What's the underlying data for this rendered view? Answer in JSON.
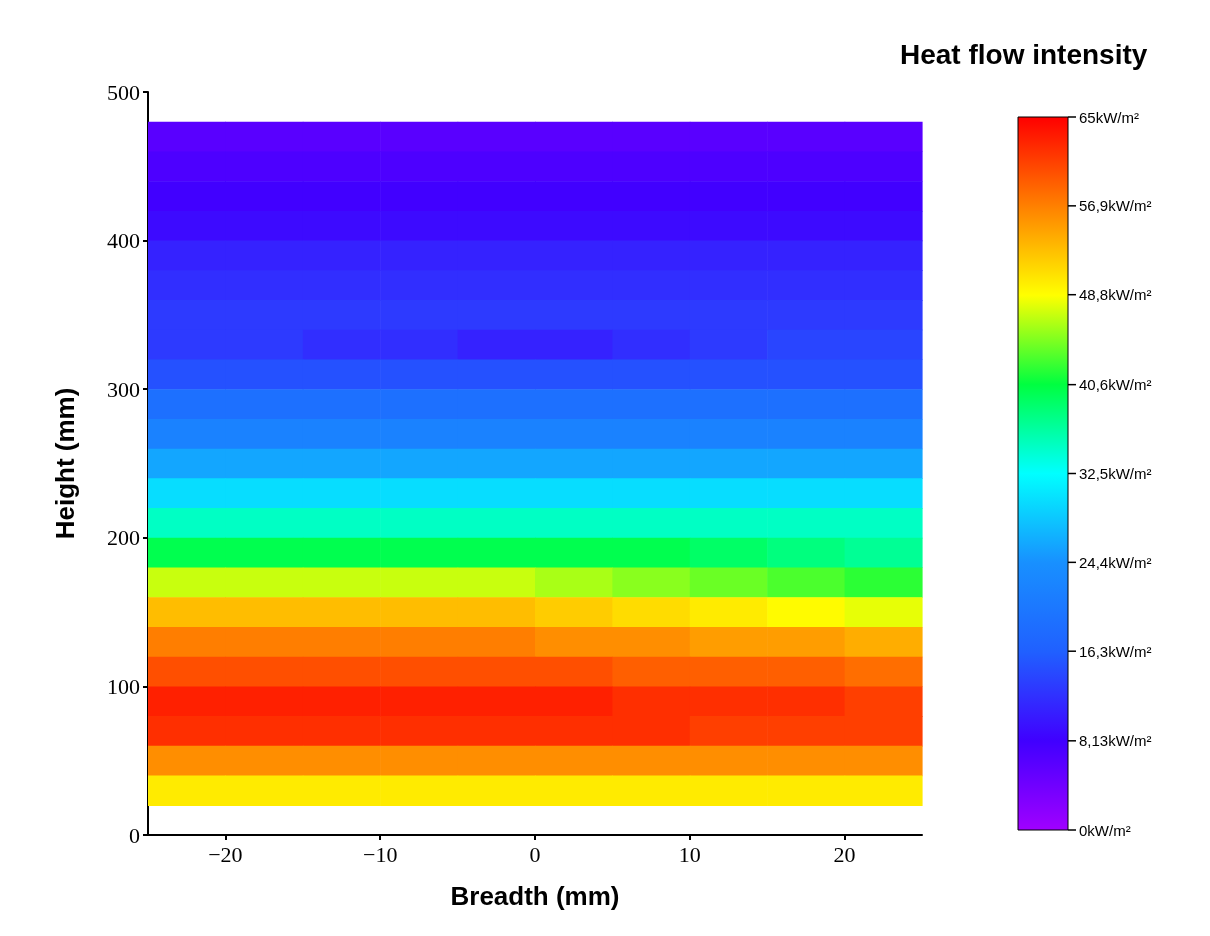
{
  "chart_data": {
    "type": "heatmap",
    "xlabel": "Breadth (mm)",
    "ylabel": "Height (mm)",
    "clabel": "Heat flow intensity",
    "x": [
      -22.5,
      -17.5,
      -12.5,
      -7.5,
      -2.5,
      2.5,
      7.5,
      12.5,
      17.5,
      22.5
    ],
    "y": [
      470,
      450,
      430,
      410,
      390,
      370,
      350,
      330,
      310,
      290,
      270,
      250,
      230,
      210,
      190,
      170,
      150,
      130,
      110,
      90,
      70,
      50,
      30
    ],
    "cells": [
      [
        6,
        6,
        6,
        6,
        6,
        6,
        6,
        6,
        6,
        6
      ],
      [
        7,
        7,
        7,
        7,
        7,
        7,
        7,
        7,
        7,
        7
      ],
      [
        8,
        8,
        8,
        8,
        8,
        8,
        8,
        8,
        8,
        8
      ],
      [
        9,
        9,
        9,
        9,
        9,
        9,
        9,
        9,
        9,
        9
      ],
      [
        11,
        11,
        11,
        11,
        11,
        11,
        11,
        11,
        11,
        11
      ],
      [
        12,
        12,
        12,
        12,
        12,
        12,
        12,
        12,
        12,
        12
      ],
      [
        13,
        13,
        13,
        13,
        13,
        13,
        13,
        13,
        13,
        13
      ],
      [
        13,
        13,
        12,
        12,
        11,
        11,
        12,
        13,
        14,
        14
      ],
      [
        15,
        15,
        15,
        15,
        15,
        15,
        15,
        15,
        15,
        15
      ],
      [
        19,
        19,
        19,
        19,
        19,
        19,
        19,
        19,
        19,
        19
      ],
      [
        22,
        22,
        22,
        22,
        22,
        22,
        22,
        22,
        22,
        22
      ],
      [
        26,
        26,
        26,
        26,
        26,
        26,
        26,
        26,
        26,
        26
      ],
      [
        30,
        30,
        30,
        30,
        30,
        30,
        30,
        30,
        30,
        30
      ],
      [
        35,
        35,
        35,
        35,
        35,
        35,
        35,
        35,
        35,
        35
      ],
      [
        40,
        40,
        40,
        40,
        40,
        40,
        40,
        39,
        38,
        37
      ],
      [
        47,
        47,
        47,
        47,
        47,
        46,
        45,
        44,
        43,
        42
      ],
      [
        53,
        53,
        53,
        53,
        53,
        52,
        51,
        50,
        49,
        48
      ],
      [
        57,
        57,
        57,
        57,
        57,
        56,
        56,
        55,
        55,
        54
      ],
      [
        60,
        60,
        60,
        60,
        60,
        60,
        59,
        59,
        59,
        58
      ],
      [
        63,
        63,
        63,
        63,
        63,
        63,
        62,
        62,
        62,
        61
      ],
      [
        62,
        62,
        62,
        62,
        62,
        62,
        62,
        61,
        61,
        61
      ],
      [
        56,
        56,
        56,
        56,
        56,
        56,
        56,
        56,
        56,
        56
      ],
      [
        50,
        50,
        50,
        50,
        50,
        50,
        50,
        50,
        50,
        50
      ]
    ],
    "colors": [
      "#a000ff",
      "#4000ff",
      "#2060ff",
      "#1890ff",
      "#00ffff",
      "#00ff40",
      "#ffff00",
      "#ff8000",
      "#ff0000"
    ],
    "xlim": [
      -25,
      25
    ],
    "xticks": [
      -20,
      -10,
      0,
      10,
      20
    ],
    "ylim": [
      0,
      500
    ],
    "yticks": [
      0,
      100,
      200,
      300,
      400,
      500
    ],
    "clim": [
      0,
      65
    ],
    "cticks": [
      {
        "value": 0,
        "label": "0kW/m²"
      },
      {
        "value": 8.13,
        "label": "8,13kW/m²"
      },
      {
        "value": 16.3,
        "label": "16,3kW/m²"
      },
      {
        "value": 24.4,
        "label": "24,4kW/m²"
      },
      {
        "value": 32.5,
        "label": "32,5kW/m²"
      },
      {
        "value": 40.6,
        "label": "40,6kW/m²"
      },
      {
        "value": 48.8,
        "label": "48,8kW/m²"
      },
      {
        "value": 56.9,
        "label": "56,9kW/m²"
      },
      {
        "value": 65,
        "label": "65kW/m²"
      }
    ],
    "grid": false
  }
}
